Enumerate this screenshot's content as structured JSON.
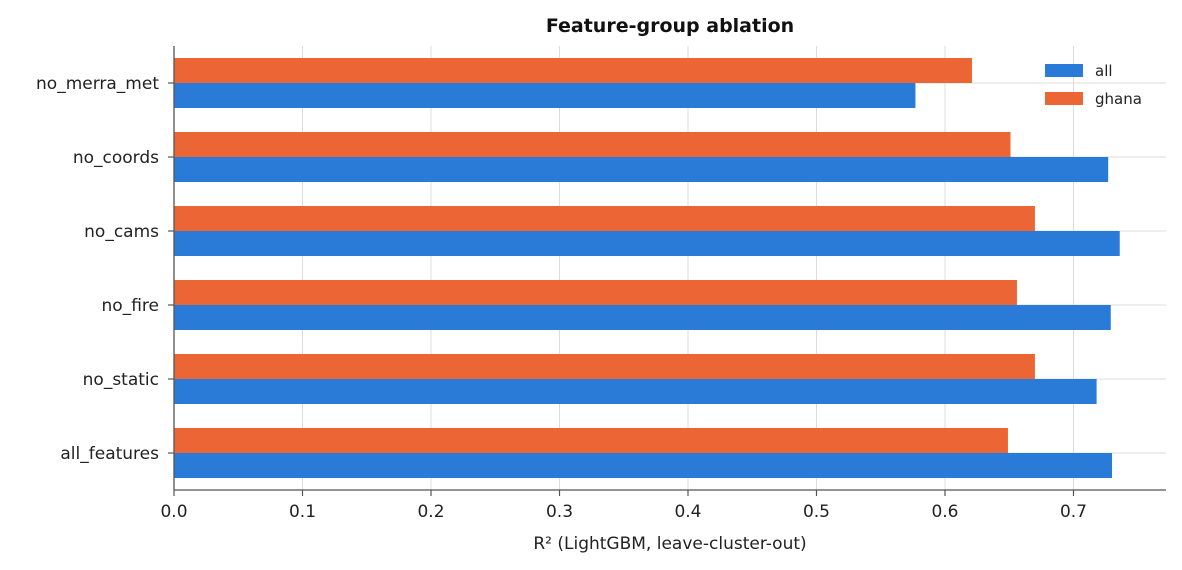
{
  "chart_data": {
    "type": "bar",
    "orientation": "horizontal",
    "title": "Feature-group ablation",
    "xlabel": "R² (LightGBM, leave-cluster-out)",
    "ylabel": "",
    "xlim": [
      0,
      0.772
    ],
    "xticks": [
      0.0,
      0.1,
      0.2,
      0.3,
      0.4,
      0.5,
      0.6,
      0.7
    ],
    "xtick_labels": [
      "0.0",
      "0.1",
      "0.2",
      "0.3",
      "0.4",
      "0.5",
      "0.6",
      "0.7"
    ],
    "grid": true,
    "legend_position": "top-right",
    "categories": [
      "no_merra_met",
      "no_coords",
      "no_cams",
      "no_fire",
      "no_static",
      "all_features"
    ],
    "series": [
      {
        "name": "all",
        "color": "#2a7ad8",
        "values": [
          0.577,
          0.727,
          0.736,
          0.729,
          0.718,
          0.73
        ]
      },
      {
        "name": "ghana",
        "color": "#eb6634",
        "values": [
          0.621,
          0.651,
          0.67,
          0.656,
          0.67,
          0.649
        ]
      }
    ]
  }
}
